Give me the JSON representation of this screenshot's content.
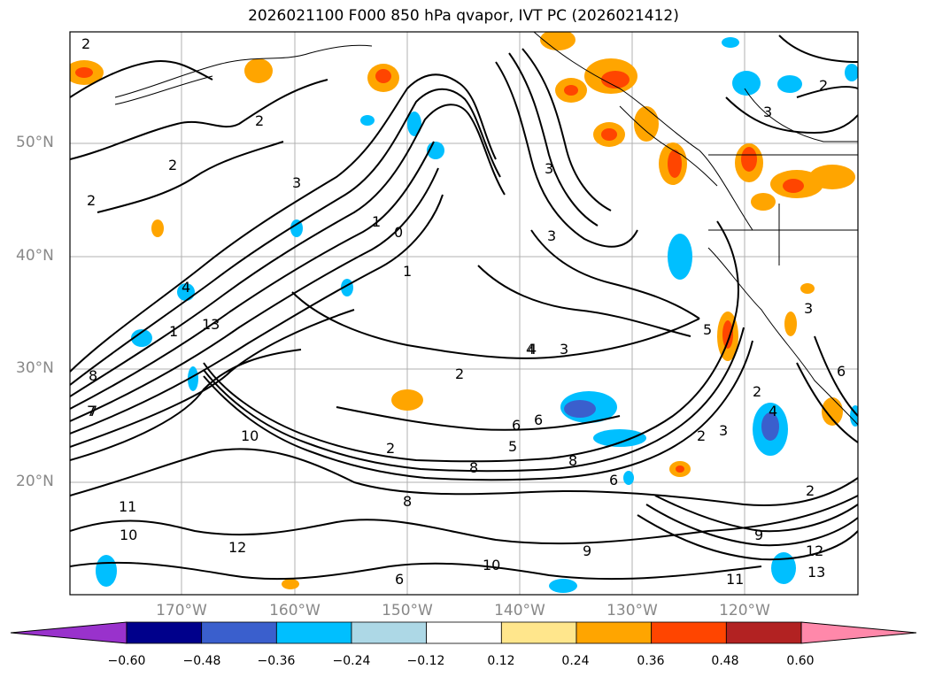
{
  "title": "2026021100 F000 850 hPa qvapor, IVT PC (2026021412)",
  "lat_labels": [
    "50°N",
    "40°N",
    "30°N",
    "20°N"
  ],
  "lon_labels": [
    "170°W",
    "160°W",
    "150°W",
    "140°W",
    "130°W",
    "120°W"
  ],
  "colorbar": {
    "tick_labels": [
      "−0.60",
      "−0.48",
      "−0.36",
      "−0.24",
      "−0.12",
      "0.12",
      "0.24",
      "0.36",
      "0.48",
      "0.60"
    ],
    "colors": [
      "#9932cc",
      "#00008b",
      "#3a5fcd",
      "#00bfff",
      "#add8e6",
      "#ffffff",
      "#ffe68c",
      "#ffa500",
      "#ff4500",
      "#b22222",
      "#ff88aa"
    ]
  },
  "contour_labels": [
    "2",
    "2",
    "2",
    "2",
    "2",
    "3",
    "3",
    "3",
    "4",
    "4",
    "1",
    "0",
    "1",
    "6",
    "8",
    "10",
    "11",
    "7",
    "6",
    "8",
    "9",
    "10",
    "13",
    "12",
    "2",
    "3",
    "5",
    "4",
    "2",
    "3",
    "2",
    "2",
    "6",
    "8",
    "9",
    "10",
    "11",
    "12",
    "13",
    "1",
    "5",
    "3",
    "3",
    "6",
    "8",
    "7",
    "6",
    "2",
    "4"
  ]
}
